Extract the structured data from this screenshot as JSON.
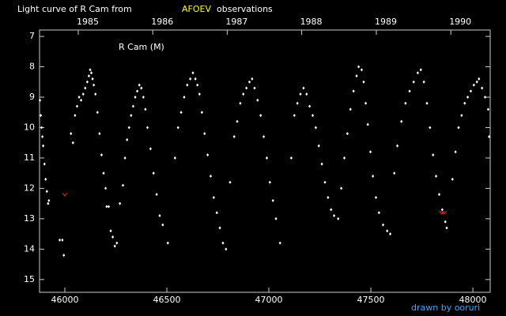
{
  "chart_data": {
    "type": "scatter",
    "title": [
      "Light curve of R Cam from",
      "AFOEV",
      "observations"
    ],
    "title_colors": [
      "#ffffff",
      "#ffff00",
      "#ffffff"
    ],
    "annotation": "R Cam (M)",
    "credit": "drawn by ooruri",
    "xlim": [
      45876,
      48085
    ],
    "ylim": [
      15.42,
      6.79
    ],
    "xticks": [
      46000,
      46500,
      47000,
      47500,
      48000
    ],
    "yticks": [
      7,
      8,
      9,
      10,
      11,
      12,
      13,
      14,
      15
    ],
    "x2ticks": [
      {
        "value": 46066,
        "label": "1985"
      },
      {
        "value": 46431,
        "label": "1986"
      },
      {
        "value": 46796,
        "label": "1987"
      },
      {
        "value": 47161,
        "label": "1988"
      },
      {
        "value": 47527,
        "label": "1989"
      },
      {
        "value": 47892,
        "label": "1990"
      }
    ],
    "series": [
      {
        "color": "#ffffff",
        "marker": "diamond",
        "x": [
          45878,
          45882,
          45886,
          45890,
          45894,
          45900,
          45906,
          45912,
          45918,
          45922,
          45975,
          45988,
          45995,
          46030,
          46040,
          46050,
          46060,
          46070,
          46080,
          46090,
          46100,
          46110,
          46118,
          46124,
          46130,
          46136,
          46142,
          46150,
          46160,
          46170,
          46180,
          46190,
          46200,
          46205,
          46215,
          46225,
          46235,
          46245,
          46255,
          46270,
          46285,
          46295,
          46305,
          46315,
          46325,
          46335,
          46345,
          46355,
          46365,
          46375,
          46385,
          46395,
          46405,
          46420,
          46435,
          46450,
          46465,
          46480,
          46505,
          46540,
          46555,
          46570,
          46585,
          46600,
          46615,
          46628,
          46640,
          46650,
          46660,
          46672,
          46685,
          46700,
          46715,
          46730,
          46745,
          46760,
          46775,
          46790,
          46810,
          46830,
          46845,
          46860,
          46875,
          46890,
          46905,
          46918,
          46930,
          46945,
          46960,
          46975,
          46990,
          47005,
          47020,
          47035,
          47055,
          47110,
          47125,
          47140,
          47155,
          47170,
          47185,
          47200,
          47215,
          47230,
          47245,
          47260,
          47275,
          47290,
          47305,
          47320,
          47340,
          47355,
          47370,
          47385,
          47400,
          47415,
          47430,
          47440,
          47455,
          47465,
          47475,
          47485,
          47498,
          47510,
          47525,
          47540,
          47560,
          47580,
          47595,
          47615,
          47630,
          47650,
          47670,
          47690,
          47710,
          47730,
          47745,
          47760,
          47775,
          47790,
          47805,
          47820,
          47835,
          47850,
          47865,
          47872,
          47900,
          47915,
          47930,
          47945,
          47960,
          47975,
          47990,
          48005,
          48020,
          48030,
          48045,
          48060,
          48075,
          48080
        ],
        "values": [
          9.1,
          9.6,
          10.0,
          10.3,
          10.6,
          11.2,
          11.7,
          12.1,
          12.5,
          12.4,
          13.7,
          13.7,
          14.2,
          10.2,
          10.5,
          9.6,
          9.3,
          9.0,
          9.1,
          8.9,
          8.7,
          8.5,
          8.3,
          8.1,
          8.2,
          8.4,
          8.6,
          8.9,
          9.5,
          10.2,
          10.9,
          11.5,
          12.0,
          12.6,
          12.6,
          13.4,
          13.6,
          13.9,
          13.8,
          12.5,
          11.9,
          11.0,
          10.4,
          10.0,
          9.6,
          9.3,
          9.0,
          8.8,
          8.6,
          8.7,
          9.0,
          9.4,
          10.0,
          10.7,
          11.5,
          12.2,
          12.9,
          13.2,
          13.8,
          11.0,
          10.0,
          9.5,
          9.0,
          8.6,
          8.4,
          8.2,
          8.4,
          8.6,
          8.9,
          9.5,
          10.2,
          10.9,
          11.6,
          12.3,
          12.8,
          13.3,
          13.8,
          14.0,
          11.8,
          10.3,
          9.8,
          9.2,
          8.9,
          8.7,
          8.5,
          8.4,
          8.7,
          9.1,
          9.6,
          10.3,
          11.0,
          11.8,
          12.4,
          13.0,
          13.8,
          11.0,
          9.6,
          9.2,
          8.9,
          8.7,
          8.9,
          9.3,
          9.6,
          10.0,
          10.6,
          11.2,
          11.8,
          12.3,
          12.7,
          12.9,
          13.0,
          12.0,
          11.0,
          10.2,
          9.4,
          8.8,
          8.3,
          8.0,
          8.1,
          8.5,
          9.2,
          9.9,
          10.8,
          11.6,
          12.3,
          12.8,
          13.2,
          13.4,
          13.5,
          11.5,
          10.6,
          9.8,
          9.2,
          8.8,
          8.5,
          8.2,
          8.1,
          8.5,
          9.2,
          10.0,
          10.9,
          11.6,
          12.2,
          12.7,
          13.1,
          13.3,
          11.7,
          10.8,
          10.0,
          9.6,
          9.2,
          9.0,
          8.8,
          8.6,
          8.5,
          8.4,
          8.7,
          9.0,
          9.4,
          10.3
        ]
      },
      {
        "color": "#ff2020",
        "marker": "v",
        "x": [
          46000,
          47848,
          47858
        ],
        "values": [
          12.2,
          12.8,
          12.8
        ]
      }
    ]
  }
}
